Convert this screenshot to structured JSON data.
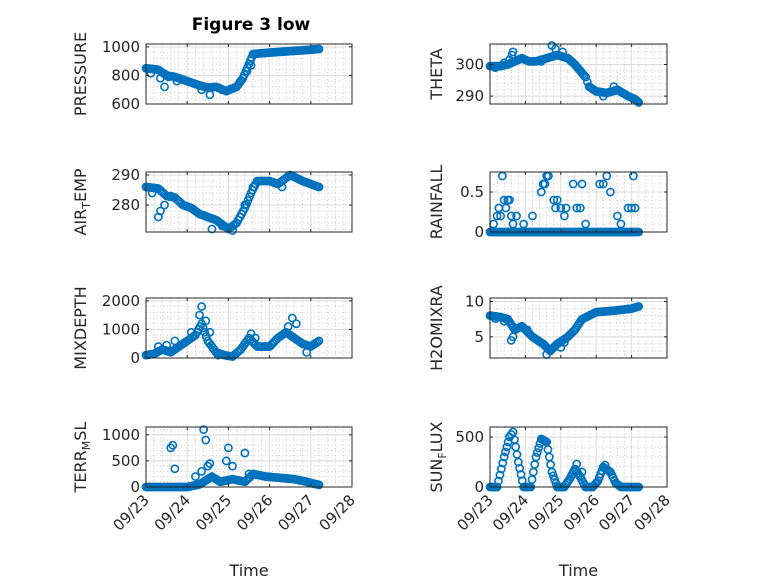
{
  "figure": {
    "title": "Figure 3 low",
    "marker_color": "#0072bd",
    "x_tick_labels": [
      "09/23",
      "09/24",
      "09/25",
      "09/26",
      "09/27",
      "09/28"
    ],
    "xlabel": "Time"
  },
  "chart_data": [
    {
      "type": "scatter",
      "ylabel": "PRESSURE",
      "yticks": [
        600,
        800,
        1000
      ],
      "ylim": [
        600,
        1020
      ],
      "xlim": [
        0,
        5
      ],
      "knots": [
        [
          0,
          850
        ],
        [
          0.3,
          840
        ],
        [
          0.5,
          800
        ],
        [
          0.7,
          790
        ],
        [
          0.9,
          770
        ],
        [
          1.1,
          750
        ],
        [
          1.3,
          730
        ],
        [
          1.5,
          715
        ],
        [
          1.7,
          720
        ],
        [
          1.95,
          690
        ],
        [
          2.2,
          720
        ],
        [
          2.35,
          780
        ],
        [
          2.5,
          880
        ],
        [
          2.6,
          950
        ],
        [
          3.0,
          960
        ],
        [
          3.5,
          970
        ],
        [
          4.0,
          980
        ],
        [
          4.2,
          985
        ]
      ],
      "outliers": [
        [
          0.12,
          815
        ],
        [
          0.35,
          780
        ],
        [
          0.45,
          720
        ],
        [
          0.55,
          790
        ],
        [
          0.75,
          760
        ],
        [
          1.35,
          700
        ],
        [
          1.55,
          665
        ],
        [
          1.85,
          700
        ],
        [
          2.05,
          705
        ],
        [
          2.3,
          760
        ],
        [
          2.45,
          830
        ],
        [
          2.55,
          870
        ]
      ]
    },
    {
      "type": "scatter",
      "ylabel": "THETA",
      "yticks": [
        290,
        300
      ],
      "ylim": [
        287.5,
        306.5
      ],
      "xlim": [
        0,
        5
      ],
      "knots": [
        [
          0,
          299.5
        ],
        [
          0.3,
          299.5
        ],
        [
          0.5,
          300
        ],
        [
          0.7,
          301
        ],
        [
          0.9,
          302
        ],
        [
          1.1,
          301
        ],
        [
          1.3,
          301
        ],
        [
          1.6,
          302
        ],
        [
          1.9,
          303
        ],
        [
          2.2,
          302
        ],
        [
          2.4,
          300
        ],
        [
          2.55,
          298
        ],
        [
          2.7,
          296
        ],
        [
          2.8,
          293
        ],
        [
          3.0,
          291.5
        ],
        [
          3.3,
          291
        ],
        [
          3.6,
          292
        ],
        [
          3.9,
          290
        ],
        [
          4.1,
          289
        ],
        [
          4.2,
          288
        ]
      ],
      "outliers": [
        [
          0.15,
          299
        ],
        [
          0.4,
          300.5
        ],
        [
          0.55,
          301.5
        ],
        [
          0.62,
          303
        ],
        [
          0.65,
          304
        ],
        [
          1.45,
          301
        ],
        [
          1.75,
          306
        ],
        [
          1.85,
          305
        ],
        [
          2.05,
          304
        ],
        [
          2.3,
          301
        ],
        [
          3.2,
          290
        ],
        [
          3.5,
          293
        ]
      ]
    },
    {
      "type": "scatter",
      "ylabel": "AIR_TEMP",
      "ylabel_main": "AIR",
      "ylabel_sub": "T",
      "ylabel_rest": "EMP",
      "yticks": [
        280,
        290
      ],
      "ylim": [
        271,
        291
      ],
      "xlim": [
        0,
        5
      ],
      "knots": [
        [
          0,
          286
        ],
        [
          0.3,
          285.5
        ],
        [
          0.5,
          283
        ],
        [
          0.7,
          282.5
        ],
        [
          0.9,
          280
        ],
        [
          1.1,
          279
        ],
        [
          1.3,
          277
        ],
        [
          1.5,
          276
        ],
        [
          1.7,
          275
        ],
        [
          2.0,
          272
        ],
        [
          2.2,
          274
        ],
        [
          2.4,
          279
        ],
        [
          2.55,
          284
        ],
        [
          2.7,
          288
        ],
        [
          3.0,
          288
        ],
        [
          3.2,
          287
        ],
        [
          3.5,
          290
        ],
        [
          3.8,
          288
        ],
        [
          4.1,
          286.5
        ],
        [
          4.2,
          286
        ]
      ],
      "outliers": [
        [
          0.15,
          284
        ],
        [
          0.3,
          276
        ],
        [
          0.35,
          278
        ],
        [
          0.45,
          280
        ],
        [
          0.6,
          283
        ],
        [
          1.5,
          276
        ],
        [
          1.6,
          272
        ],
        [
          1.85,
          273
        ],
        [
          2.1,
          271.5
        ],
        [
          2.4,
          280
        ],
        [
          2.6,
          286
        ],
        [
          3.3,
          286
        ]
      ]
    },
    {
      "type": "scatter",
      "ylabel": "RAINFALL",
      "yticks": [
        0,
        0.5
      ],
      "ylim": [
        0,
        0.75
      ],
      "xlim": [
        0,
        5
      ],
      "knots": [
        [
          0,
          0
        ],
        [
          4.2,
          0
        ]
      ],
      "outliers": [
        [
          0.1,
          0.1
        ],
        [
          0.2,
          0.2
        ],
        [
          0.25,
          0.3
        ],
        [
          0.3,
          0.2
        ],
        [
          0.35,
          0.7
        ],
        [
          0.4,
          0.4
        ],
        [
          0.45,
          0.3
        ],
        [
          0.5,
          0.4
        ],
        [
          0.55,
          0.4
        ],
        [
          0.6,
          0.2
        ],
        [
          0.65,
          0.1
        ],
        [
          0.75,
          0.2
        ],
        [
          0.95,
          0.1
        ],
        [
          1.2,
          0.2
        ],
        [
          1.45,
          0.5
        ],
        [
          1.5,
          0.6
        ],
        [
          1.55,
          0.6
        ],
        [
          1.6,
          0.7
        ],
        [
          1.65,
          0.7
        ],
        [
          1.8,
          0.4
        ],
        [
          1.85,
          0.3
        ],
        [
          1.9,
          0.4
        ],
        [
          2.0,
          0.3
        ],
        [
          2.1,
          0.2
        ],
        [
          2.15,
          0.3
        ],
        [
          2.35,
          0.6
        ],
        [
          2.45,
          0.3
        ],
        [
          2.55,
          0.3
        ],
        [
          2.6,
          0.6
        ],
        [
          2.7,
          0.1
        ],
        [
          3.1,
          0.6
        ],
        [
          3.2,
          0.6
        ],
        [
          3.3,
          0.7
        ],
        [
          3.4,
          0.5
        ],
        [
          3.6,
          0.2
        ],
        [
          3.7,
          0.1
        ],
        [
          3.9,
          0.3
        ],
        [
          4.0,
          0.3
        ],
        [
          4.05,
          0.7
        ],
        [
          4.1,
          0.3
        ]
      ]
    },
    {
      "type": "scatter",
      "ylabel": "MIXDEPTH",
      "yticks": [
        0,
        1000,
        2000
      ],
      "ylim": [
        0,
        2100
      ],
      "xlim": [
        0,
        5
      ],
      "knots": [
        [
          0,
          100
        ],
        [
          0.2,
          150
        ],
        [
          0.4,
          300
        ],
        [
          0.6,
          200
        ],
        [
          0.8,
          400
        ],
        [
          1.0,
          600
        ],
        [
          1.2,
          800
        ],
        [
          1.35,
          1200
        ],
        [
          1.5,
          600
        ],
        [
          1.7,
          200
        ],
        [
          1.9,
          100
        ],
        [
          2.1,
          50
        ],
        [
          2.3,
          300
        ],
        [
          2.5,
          700
        ],
        [
          2.7,
          400
        ],
        [
          3.0,
          400
        ],
        [
          3.2,
          700
        ],
        [
          3.4,
          900
        ],
        [
          3.6,
          700
        ],
        [
          3.8,
          500
        ],
        [
          4.0,
          400
        ],
        [
          4.2,
          600
        ]
      ],
      "outliers": [
        [
          0.3,
          400
        ],
        [
          0.5,
          450
        ],
        [
          0.7,
          600
        ],
        [
          1.1,
          900
        ],
        [
          1.3,
          1500
        ],
        [
          1.35,
          1800
        ],
        [
          1.45,
          1300
        ],
        [
          1.55,
          900
        ],
        [
          1.75,
          100
        ],
        [
          2.55,
          850
        ],
        [
          2.65,
          700
        ],
        [
          3.45,
          1100
        ],
        [
          3.55,
          1400
        ],
        [
          3.65,
          1200
        ],
        [
          3.9,
          200
        ]
      ]
    },
    {
      "type": "scatter",
      "ylabel": "H2OMIXRA",
      "yticks": [
        5,
        10
      ],
      "ylim": [
        2,
        10.5
      ],
      "xlim": [
        0,
        5
      ],
      "knots": [
        [
          0,
          8
        ],
        [
          0.3,
          7.8
        ],
        [
          0.5,
          7.5
        ],
        [
          0.7,
          6
        ],
        [
          0.9,
          6.5
        ],
        [
          1.2,
          5
        ],
        [
          1.5,
          4
        ],
        [
          1.7,
          3
        ],
        [
          1.9,
          4
        ],
        [
          2.2,
          5
        ],
        [
          2.4,
          6
        ],
        [
          2.6,
          7.5
        ],
        [
          2.8,
          8
        ],
        [
          3.0,
          8.5
        ],
        [
          3.5,
          8.7
        ],
        [
          4.0,
          9
        ],
        [
          4.2,
          9.3
        ]
      ],
      "outliers": [
        [
          0.15,
          7.6
        ],
        [
          0.4,
          7.2
        ],
        [
          0.6,
          4.5
        ],
        [
          0.65,
          5
        ],
        [
          1.05,
          6
        ],
        [
          1.6,
          2.5
        ],
        [
          2.0,
          3.5
        ],
        [
          2.1,
          4.2
        ]
      ]
    },
    {
      "type": "scatter",
      "ylabel": "TERR_MSL",
      "ylabel_main": "TERR",
      "ylabel_sub": "M",
      "ylabel_rest": "SL",
      "yticks": [
        0,
        500,
        1000
      ],
      "ylim": [
        0,
        1150
      ],
      "xlim": [
        0,
        5
      ],
      "knots": [
        [
          0,
          0
        ],
        [
          0.6,
          0
        ],
        [
          0.8,
          0
        ],
        [
          1.0,
          0
        ],
        [
          1.3,
          50
        ],
        [
          1.6,
          200
        ],
        [
          1.8,
          100
        ],
        [
          2.1,
          150
        ],
        [
          2.4,
          100
        ],
        [
          2.6,
          250
        ],
        [
          2.9,
          200
        ],
        [
          3.2,
          180
        ],
        [
          3.6,
          150
        ],
        [
          3.9,
          100
        ],
        [
          4.2,
          40
        ]
      ],
      "outliers": [
        [
          0.6,
          750
        ],
        [
          0.65,
          800
        ],
        [
          0.7,
          350
        ],
        [
          1.4,
          1100
        ],
        [
          1.45,
          900
        ],
        [
          1.5,
          400
        ],
        [
          1.55,
          450
        ],
        [
          1.95,
          500
        ],
        [
          2.0,
          750
        ],
        [
          2.1,
          400
        ],
        [
          2.4,
          650
        ],
        [
          2.5,
          250
        ],
        [
          1.35,
          300
        ],
        [
          1.2,
          200
        ]
      ]
    },
    {
      "type": "scatter",
      "ylabel": "SUN_FLUX",
      "ylabel_main": "SUN",
      "ylabel_sub": "F",
      "ylabel_rest": "LUX",
      "yticks": [
        0,
        500
      ],
      "ylim": [
        0,
        600
      ],
      "xlim": [
        0,
        5
      ],
      "knots": [
        [
          0,
          0
        ],
        [
          0.2,
          0
        ],
        [
          0.4,
          300
        ],
        [
          0.55,
          500
        ],
        [
          0.65,
          550
        ],
        [
          0.8,
          250
        ],
        [
          0.95,
          0
        ],
        [
          1.15,
          0
        ],
        [
          1.3,
          300
        ],
        [
          1.45,
          480
        ],
        [
          1.6,
          450
        ],
        [
          1.75,
          150
        ],
        [
          1.9,
          0
        ],
        [
          2.1,
          0
        ],
        [
          2.25,
          80
        ],
        [
          2.4,
          180
        ],
        [
          2.55,
          100
        ],
        [
          2.7,
          0
        ],
        [
          2.9,
          0
        ],
        [
          3.05,
          60
        ],
        [
          3.2,
          200
        ],
        [
          3.4,
          150
        ],
        [
          3.55,
          40
        ],
        [
          3.7,
          0
        ],
        [
          4.2,
          0
        ]
      ],
      "outliers": [
        [
          2.45,
          230
        ],
        [
          2.6,
          150
        ],
        [
          3.25,
          220
        ]
      ]
    }
  ]
}
